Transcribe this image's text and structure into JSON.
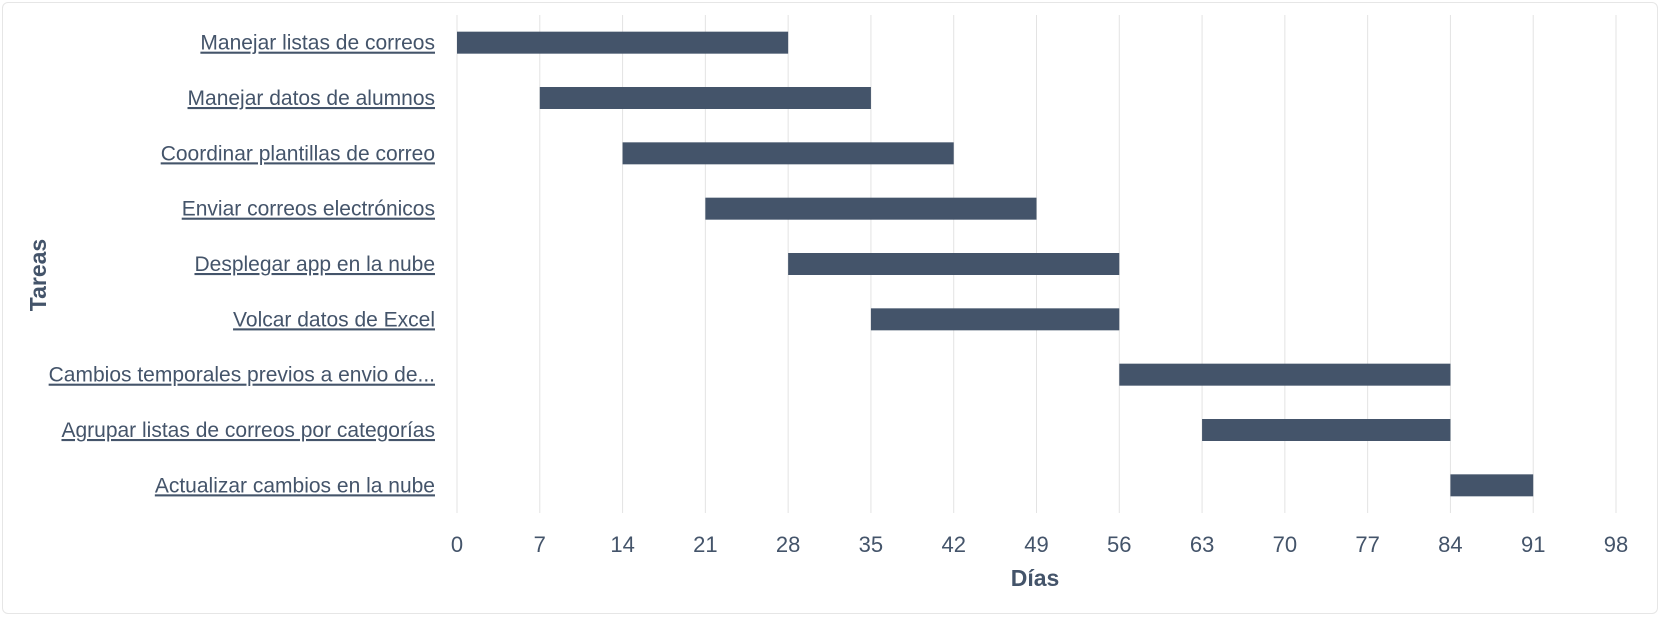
{
  "chart_data": {
    "type": "bar",
    "orientation": "horizontal-gantt",
    "title": "",
    "xlabel": "Días",
    "ylabel": "Tareas",
    "xlim": [
      0,
      98
    ],
    "xticks": [
      0,
      7,
      14,
      21,
      28,
      35,
      42,
      49,
      56,
      63,
      70,
      77,
      84,
      91,
      98
    ],
    "grid": "vertical",
    "bar_color": "#44546a",
    "tasks": [
      {
        "label": "Manejar listas de correos",
        "start": 0,
        "end": 28
      },
      {
        "label": "Manejar datos de alumnos",
        "start": 7,
        "end": 35
      },
      {
        "label": "Coordinar plantillas de correo",
        "start": 14,
        "end": 42
      },
      {
        "label": "Enviar correos electrónicos",
        "start": 21,
        "end": 49
      },
      {
        "label": "Desplegar app en la nube",
        "start": 28,
        "end": 56
      },
      {
        "label": "Volcar datos de Excel",
        "start": 35,
        "end": 56
      },
      {
        "label": "Cambios temporales previos a envio de...",
        "start": 56,
        "end": 84
      },
      {
        "label": "Agrupar listas de correos por categorías",
        "start": 63,
        "end": 84
      },
      {
        "label": "Actualizar cambios en la nube",
        "start": 84,
        "end": 91
      }
    ]
  }
}
